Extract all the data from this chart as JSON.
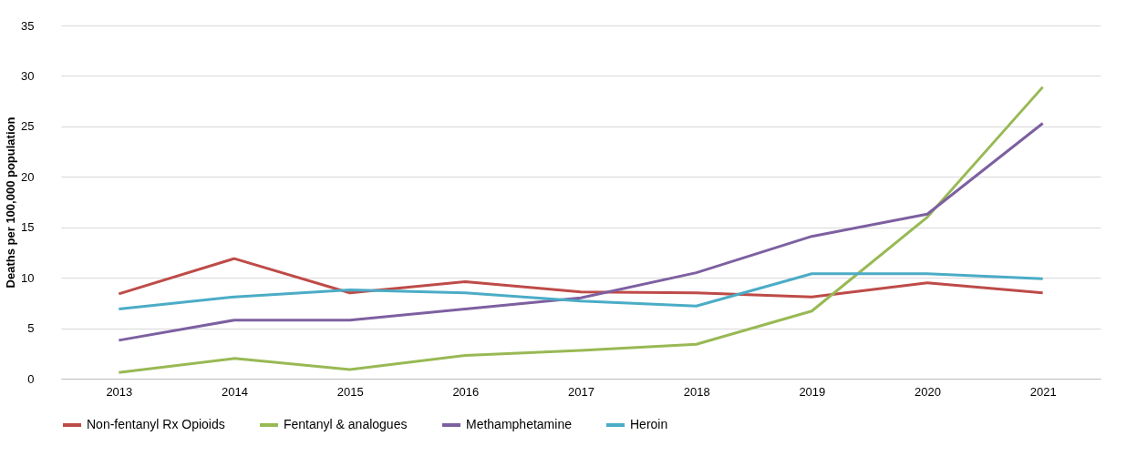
{
  "chart_data": {
    "type": "line",
    "ylabel": "Deaths per 100,000 population",
    "categories": [
      "2013",
      "2014",
      "2015",
      "2016",
      "2017",
      "2018",
      "2019",
      "2020",
      "2021"
    ],
    "series": [
      {
        "name": "Non-fentanyl Rx Opioids",
        "color": "#be4b48",
        "values": [
          8.4,
          11.9,
          8.5,
          9.6,
          8.6,
          8.5,
          8.1,
          9.5,
          8.5
        ]
      },
      {
        "name": "Fentanyl & analogues",
        "color": "#98b954",
        "values": [
          0.6,
          2.0,
          0.9,
          2.3,
          2.8,
          3.4,
          6.7,
          16.0,
          28.9
        ]
      },
      {
        "name": "Methamphetamine",
        "color": "#7d60a0",
        "values": [
          3.8,
          5.8,
          5.8,
          6.9,
          8.0,
          10.5,
          14.1,
          16.3,
          25.3
        ]
      },
      {
        "name": "Heroin",
        "color": "#4bacc6",
        "values": [
          6.9,
          8.1,
          8.8,
          8.5,
          7.7,
          7.2,
          10.4,
          10.4,
          9.9
        ]
      }
    ],
    "ylim": [
      0,
      35
    ],
    "yticks": [
      0,
      5,
      10,
      15,
      20,
      25,
      30,
      35
    ],
    "grid": "y",
    "legend": "bottom",
    "marker": "none",
    "line_style": "solid"
  }
}
